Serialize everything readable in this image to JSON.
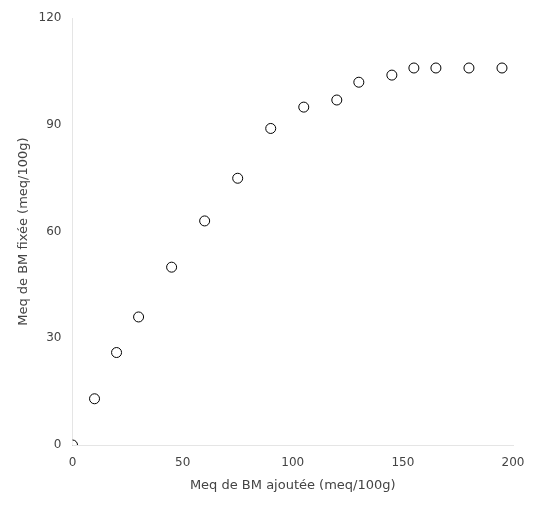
{
  "chart_data": {
    "type": "scatter",
    "x": [
      0,
      10,
      20,
      30,
      45,
      60,
      75,
      90,
      105,
      120,
      130,
      145,
      155,
      165,
      180,
      195
    ],
    "values": [
      0,
      13,
      26,
      36,
      50,
      63,
      75,
      89,
      95,
      97,
      102,
      104,
      106,
      106,
      106,
      106
    ],
    "xlabel": "Meq de BM ajoutée (meq/100g)",
    "ylabel": "Meq de BM fixée (meq/100g)",
    "xlim": [
      0,
      200
    ],
    "ylim": [
      0,
      120
    ],
    "xticks": [
      0,
      50,
      100,
      150,
      200
    ],
    "yticks": [
      0,
      30,
      60,
      90,
      120
    ],
    "marker": "circle",
    "color": "black",
    "grid": false
  }
}
